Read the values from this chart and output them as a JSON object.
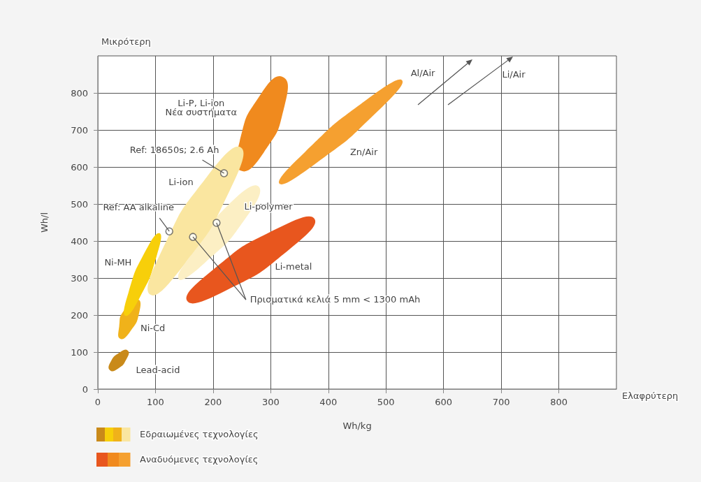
{
  "chart_data": {
    "type": "area",
    "xlabel": "Wh/kg",
    "ylabel": "Wh/l",
    "xlim": [
      0,
      900
    ],
    "ylim": [
      0,
      900
    ],
    "xticks": [
      0,
      100,
      200,
      300,
      400,
      500,
      600,
      700,
      800
    ],
    "yticks": [
      0,
      100,
      200,
      300,
      400,
      500,
      600,
      700,
      800
    ],
    "grid": true,
    "series": [
      {
        "name": "Lead-acid",
        "color": "#c98a1a",
        "x": [
          21,
          35,
          50,
          52,
          38,
          22
        ],
        "values": [
          51,
          55,
          82,
          104,
          99,
          73
        ]
      },
      {
        "name": "Ni-Cd",
        "color": "#f0b21a",
        "x": [
          39,
          56,
          72,
          69,
          45,
          37
        ],
        "values": [
          136,
          155,
          208,
          242,
          212,
          169
        ]
      },
      {
        "name": "Ni-MH",
        "color": "#f7cf0a",
        "x": [
          48,
          73,
          102,
          107,
          82,
          53
        ],
        "values": [
          198,
          248,
          359,
          421,
          371,
          260
        ]
      },
      {
        "name": "Li-polymer",
        "color": "#fcefc4",
        "x": [
          140,
          185,
          258,
          279,
          232,
          172
        ],
        "values": [
          298,
          340,
          465,
          547,
          506,
          384
        ]
      },
      {
        "name": "Li-P, Li-ion\nΝέα συστήματα",
        "color": "#f08a1e",
        "x": [
          248,
          288,
          324,
          321,
          282,
          246
        ],
        "values": [
          590,
          639,
          765,
          843,
          795,
          668
        ]
      },
      {
        "name": "Li-ion",
        "color": "#fae6a0",
        "x": [
          91,
          150,
          229,
          248,
          190,
          111
        ],
        "values": [
          255,
          337,
          537,
          653,
          575,
          374
        ]
      },
      {
        "name": "Zn/Air",
        "color": "#f5a030",
        "x": [
          315,
          377,
          484,
          528,
          466,
          360
        ],
        "values": [
          555,
          608,
          748,
          834,
          781,
          641
        ]
      },
      {
        "name": "Li-metal",
        "color": "#e8561e",
        "x": [
          155,
          222,
          332,
          376,
          309,
          199
        ],
        "values": [
          238,
          266,
          377,
          460,
          432,
          321
        ]
      },
      {
        "type": "scatter",
        "marker": "circle",
        "color": "#555555",
        "x": [
          219,
          124,
          165,
          206
        ],
        "values": [
          583,
          426,
          411,
          449
        ]
      }
    ],
    "annotations": [
      {
        "text": "Ref: 18650s; 2.6 Ah",
        "x": 219,
        "y": 583
      },
      {
        "text": "Ref: AA alkaline",
        "x": 124,
        "y": 426
      },
      {
        "text": "Πρισματικά κελιά 5 mm < 1300 mAh",
        "x": 206,
        "y": 449
      },
      "Al/Air",
      "Li/Air",
      "Μικρότερη",
      "Ελαφρύτερη",
      "Εδραιωμένες τεχνολογίες",
      "Αναδυόμενες τεχνολογίες"
    ]
  }
}
